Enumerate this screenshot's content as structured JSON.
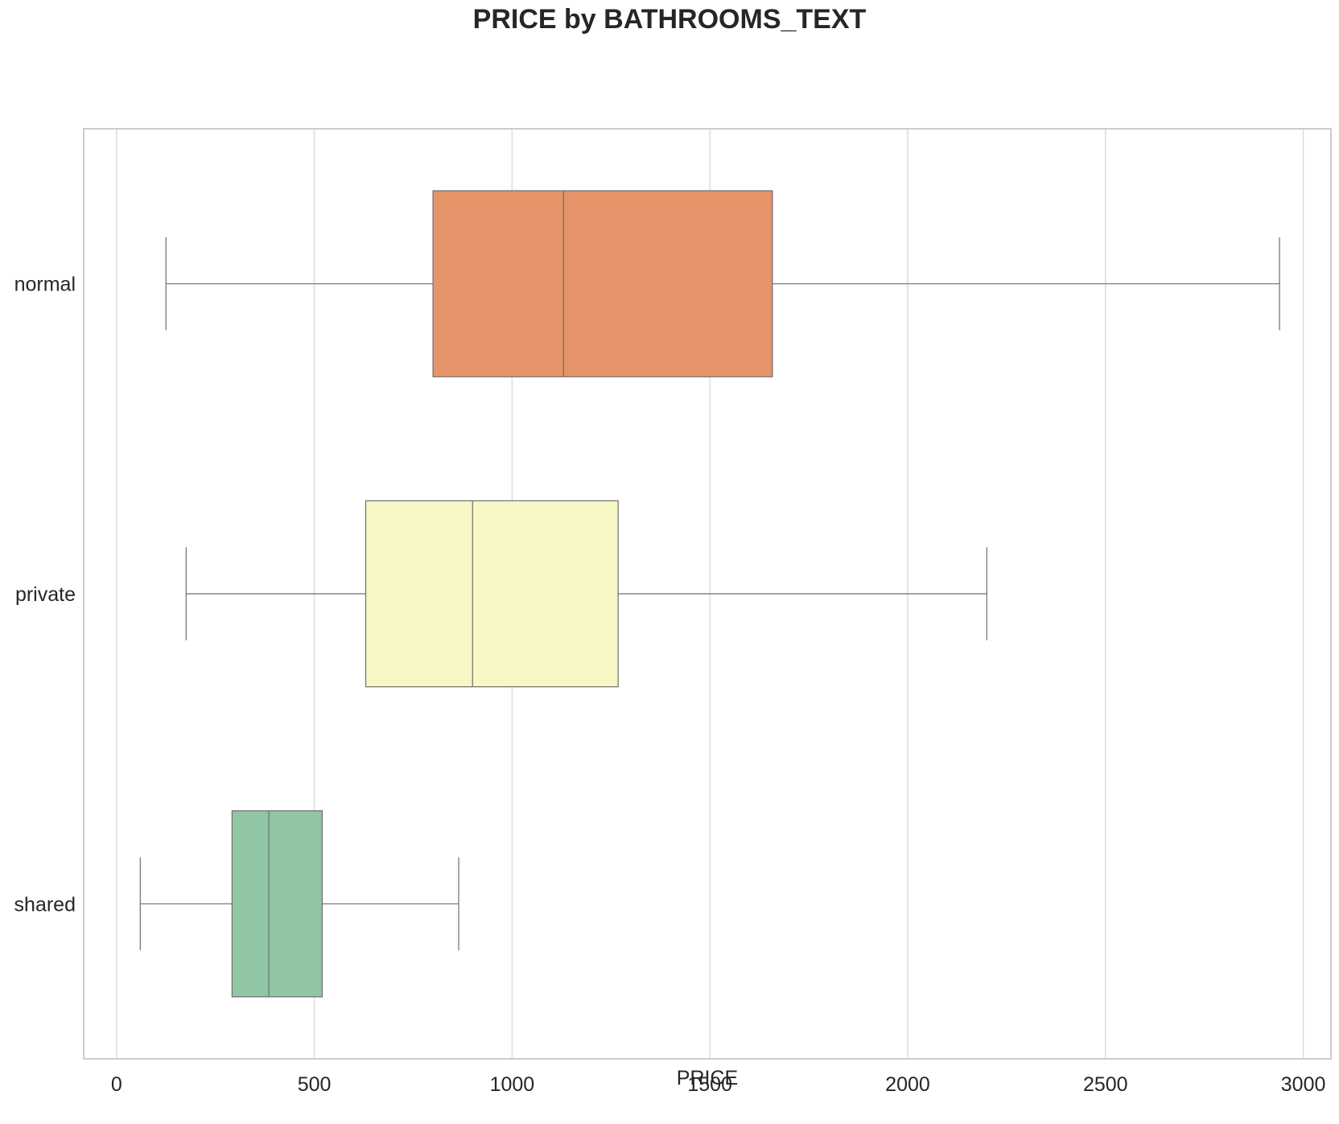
{
  "chart_data": {
    "type": "box",
    "orientation": "horizontal",
    "title": "PRICE by BATHROOMS_TEXT",
    "xlabel": "PRICE",
    "ylabel": "",
    "xlim": [
      -83,
      3070
    ],
    "xticks": [
      0,
      500,
      1000,
      1500,
      2000,
      2500,
      3000
    ],
    "grid": true,
    "categories": [
      "normal",
      "private",
      "shared"
    ],
    "boxes": [
      {
        "category": "normal",
        "whisker_low": 125,
        "q1": 800,
        "median": 1130,
        "q3": 1658,
        "whisker_high": 2940,
        "color": "#e6946a"
      },
      {
        "category": "private",
        "whisker_low": 176,
        "q1": 630,
        "median": 900,
        "q3": 1268,
        "whisker_high": 2200,
        "color": "#f7f6c5"
      },
      {
        "category": "shared",
        "whisker_low": 60,
        "q1": 292,
        "median": 385,
        "q3": 520,
        "whisker_high": 865,
        "color": "#91c6a4"
      }
    ]
  }
}
